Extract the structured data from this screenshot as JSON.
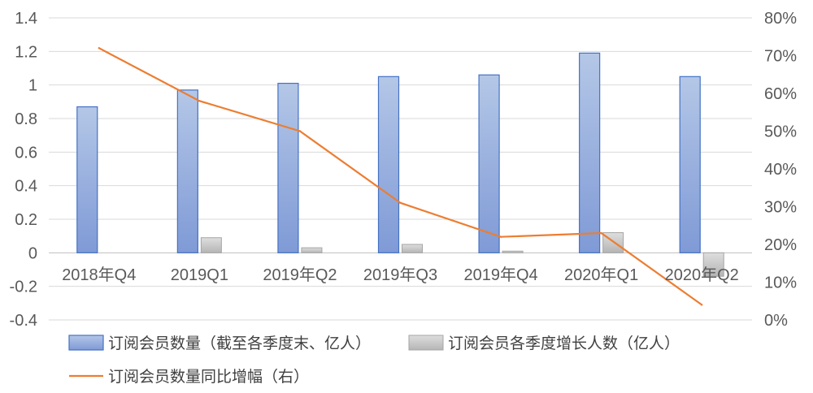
{
  "chart_data": {
    "type": "bar",
    "categories": [
      "2018年Q4",
      "2019Q1",
      "2019年Q2",
      "2019年Q3",
      "2019年Q4",
      "2020年Q1",
      "2020年Q2"
    ],
    "series": [
      {
        "name": "订阅会员数量（截至各季度末、亿人）",
        "type": "bar",
        "axis": "left",
        "color": "#8faadc",
        "values": [
          0.87,
          0.97,
          1.01,
          1.05,
          1.06,
          1.19,
          1.05
        ]
      },
      {
        "name": "订阅会员各季度增长人数（亿人）",
        "type": "bar",
        "axis": "left",
        "color": "#c9c9c9",
        "values": [
          null,
          0.09,
          0.03,
          0.05,
          0.01,
          0.12,
          -0.14
        ]
      },
      {
        "name": "订阅会员数量同比增幅（右）",
        "type": "line",
        "axis": "right",
        "color": "#ed7d31",
        "values": [
          72,
          58,
          50,
          31,
          22,
          23,
          4
        ]
      }
    ],
    "y_left": {
      "ylim": [
        -0.4,
        1.4
      ],
      "ticks": [
        "1.4",
        "1.2",
        "1",
        "0.8",
        "0.6",
        "0.4",
        "0.2",
        "0",
        "-0.2",
        "-0.4"
      ]
    },
    "y_right": {
      "ylim": [
        0,
        80
      ],
      "ticks": [
        "80%",
        "70%",
        "60%",
        "50%",
        "40%",
        "30%",
        "20%",
        "10%",
        "0%"
      ]
    },
    "grid": true,
    "legend_position": "bottom"
  }
}
